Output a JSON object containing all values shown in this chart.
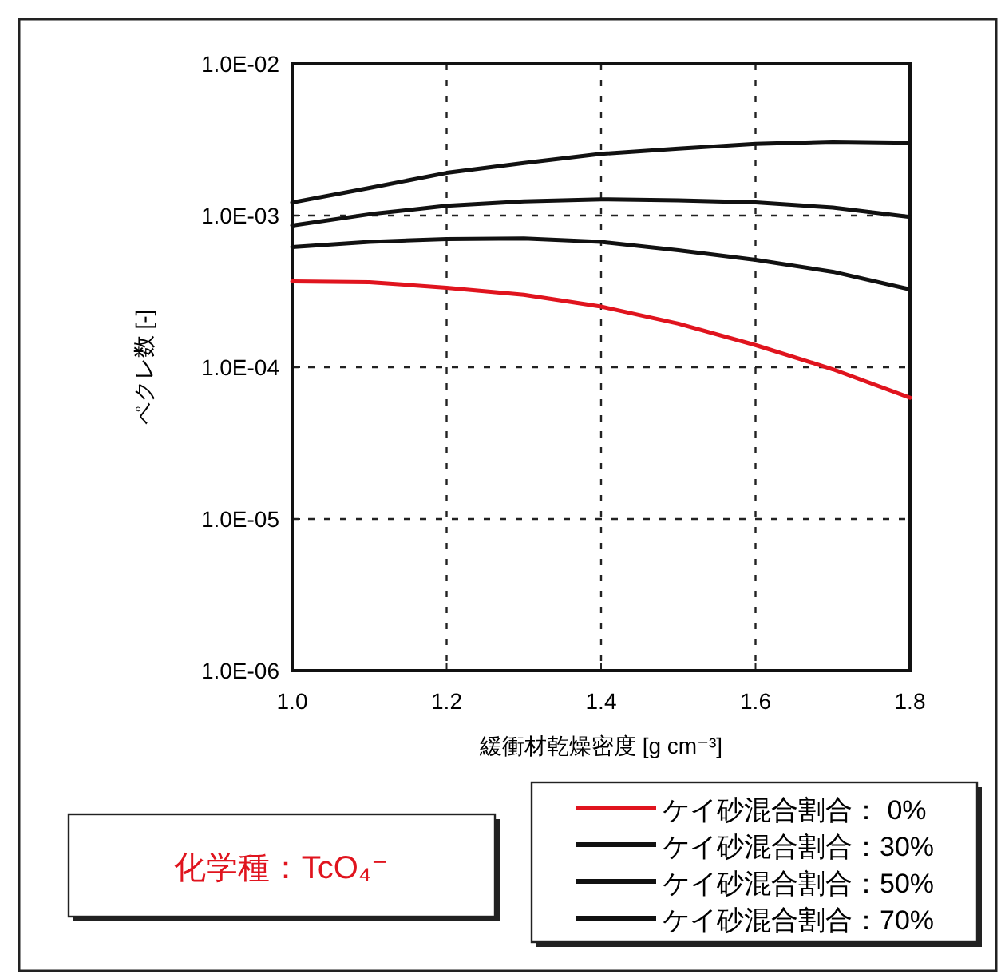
{
  "chart_data": {
    "type": "line",
    "x": [
      1.0,
      1.1,
      1.2,
      1.3,
      1.4,
      1.5,
      1.6,
      1.7,
      1.8
    ],
    "series": [
      {
        "name": "ケイ砂混合割合： 0%",
        "color": "#e0141e",
        "values": [
          0.000368,
          0.000364,
          0.000334,
          0.0003,
          0.000251,
          0.000194,
          0.00014,
          9.7e-05,
          6.3e-05
        ]
      },
      {
        "name": "ケイ砂混合割合：30%",
        "color": "#111111",
        "values": [
          0.00062,
          0.00067,
          0.0007,
          0.000705,
          0.00067,
          0.00059,
          0.00051,
          0.000426,
          0.000326
        ]
      },
      {
        "name": "ケイ砂混合割合：50%",
        "color": "#111111",
        "values": [
          0.00086,
          0.00102,
          0.00116,
          0.00124,
          0.00128,
          0.00126,
          0.00122,
          0.00113,
          0.00098
        ]
      },
      {
        "name": "ケイ砂混合割合：70%",
        "color": "#111111",
        "values": [
          0.00122,
          0.00152,
          0.00191,
          0.00222,
          0.00255,
          0.00276,
          0.00297,
          0.00307,
          0.00302
        ]
      }
    ],
    "xlabel": "緩衝材乾燥密度 [g cm⁻³]",
    "ylabel": "ペクレ数 [-]",
    "annotations": [
      "化学種：TcO₄⁻"
    ],
    "xlim": [
      1.0,
      1.8
    ],
    "xticks": [
      {
        "value": 1.0,
        "label": "1.0"
      },
      {
        "value": 1.2,
        "label": "1.2"
      },
      {
        "value": 1.4,
        "label": "1.4"
      },
      {
        "value": 1.6,
        "label": "1.6"
      },
      {
        "value": 1.8,
        "label": "1.8"
      }
    ],
    "ylim": [
      1e-06,
      0.01
    ],
    "yticks": [
      {
        "value": 1e-06,
        "label": "1.0E-06"
      },
      {
        "value": 1e-05,
        "label": "1.0E-05"
      },
      {
        "value": 0.0001,
        "label": "1.0E-04"
      },
      {
        "value": 0.001,
        "label": "1.0E-03"
      },
      {
        "value": 0.01,
        "label": "1.0E-02"
      }
    ],
    "log": "y",
    "grid": true,
    "legend": "bottom right",
    "marker": "none",
    "line_style": "solid"
  }
}
